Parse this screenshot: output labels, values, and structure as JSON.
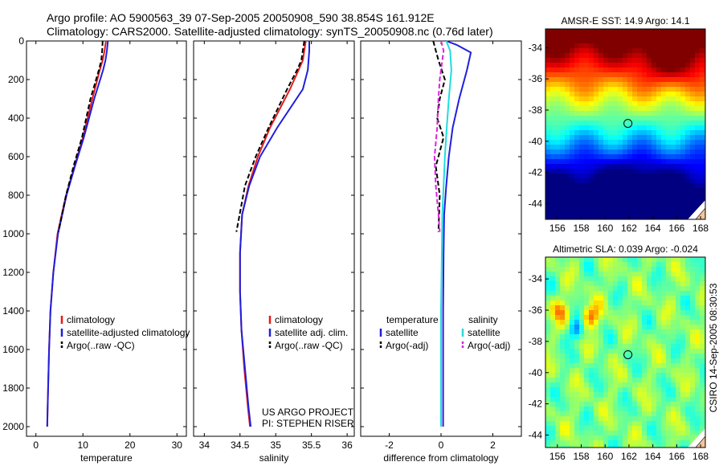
{
  "header": {
    "line1": "Argo profile: AO 5900563_39 07-Sep-2005 20050908_590 38.854S 161.912E",
    "line2": "Climatology: CARS2000. Satellite-adjusted climatology: synTS_20050908.nc (0.76d later)"
  },
  "side_label": "CSIRO 14-Sep-2005 08:30:53",
  "project_label": [
    "US ARGO PROJECT",
    "PI: STEPHEN RISER"
  ],
  "colors": {
    "climatology": "#e41a1c",
    "satellite": "#1f1fdd",
    "argo": "#000000",
    "salinity_satellite": "#22dddd",
    "salinity_argo": "#dd22dd"
  },
  "chart_data": [
    {
      "type": "line",
      "xlabel": "temperature",
      "xticks": [
        0,
        10,
        20,
        30
      ],
      "xlim": [
        -2,
        32
      ],
      "yticks": [
        0,
        200,
        400,
        600,
        800,
        1000,
        1200,
        1400,
        1600,
        1800,
        2000
      ],
      "ylim": [
        2050,
        0
      ],
      "legend": [
        "climatology",
        "satellite-adjusted climatology",
        "Argo(..raw -QC)"
      ],
      "legend_placement": "lower-right",
      "series": [
        {
          "name": "climatology",
          "style": "solid",
          "color": "#e41a1c",
          "x": [
            14.9,
            14.6,
            14.2,
            13.6,
            12.0,
            10.0,
            8.2,
            6.4,
            4.6,
            3.7,
            3.1,
            2.8,
            2.6,
            2.5,
            2.4
          ],
          "y": [
            0,
            50,
            100,
            150,
            300,
            500,
            650,
            800,
            1000,
            1200,
            1400,
            1600,
            1800,
            1900,
            2000
          ]
        },
        {
          "name": "satellite-adjusted climatology",
          "style": "solid",
          "color": "#1f1fdd",
          "x": [
            15.3,
            15.1,
            14.8,
            14.3,
            12.4,
            10.2,
            8.3,
            6.5,
            4.7,
            3.7,
            3.1,
            2.8,
            2.6,
            2.5,
            2.4
          ],
          "y": [
            0,
            50,
            100,
            150,
            300,
            500,
            650,
            800,
            1000,
            1200,
            1400,
            1600,
            1800,
            1900,
            2000
          ]
        },
        {
          "name": "Argo(..raw -QC)",
          "style": "dashed",
          "color": "#000000",
          "x": [
            14.2,
            14.1,
            13.9,
            13.4,
            11.6,
            9.8,
            8.0,
            6.4,
            4.8
          ],
          "y": [
            0,
            50,
            100,
            150,
            300,
            500,
            650,
            800,
            990
          ]
        }
      ]
    },
    {
      "type": "line",
      "xlabel": "salinity",
      "xticks": [
        34,
        34.5,
        35,
        35.5,
        36
      ],
      "xlim": [
        33.85,
        36.1
      ],
      "yticks": [
        0,
        200,
        400,
        600,
        800,
        1000,
        1200,
        1400,
        1600,
        1800,
        2000
      ],
      "ylim": [
        2050,
        0
      ],
      "legend": [
        "climatology",
        "satellite adj. clim.",
        "Argo(..raw -QC)"
      ],
      "legend_placement": "lower-right",
      "series": [
        {
          "name": "climatology",
          "style": "solid",
          "color": "#e41a1c",
          "x": [
            35.42,
            35.4,
            35.38,
            35.32,
            35.2,
            34.92,
            34.75,
            34.62,
            34.53,
            34.5,
            34.5,
            34.52,
            34.56,
            34.61,
            34.64
          ],
          "y": [
            0,
            50,
            100,
            150,
            250,
            450,
            600,
            750,
            900,
            1100,
            1300,
            1500,
            1700,
            1900,
            2000
          ]
        },
        {
          "name": "satellite adj. clim.",
          "style": "solid",
          "color": "#1f1fdd",
          "x": [
            35.47,
            35.47,
            35.46,
            35.45,
            35.38,
            35.02,
            34.78,
            34.63,
            34.53,
            34.5,
            34.5,
            34.52,
            34.57,
            34.62,
            34.65
          ],
          "y": [
            0,
            50,
            100,
            150,
            250,
            450,
            600,
            750,
            900,
            1100,
            1300,
            1500,
            1700,
            1900,
            2000
          ]
        },
        {
          "name": "Argo(..raw -QC)",
          "style": "dashed",
          "color": "#000000",
          "x": [
            35.4,
            35.38,
            35.36,
            35.3,
            35.16,
            34.9,
            34.72,
            34.57,
            34.45
          ],
          "y": [
            0,
            50,
            100,
            150,
            250,
            450,
            600,
            750,
            990
          ]
        }
      ]
    },
    {
      "type": "line",
      "xlabel": "difference from climatology",
      "xticks": [
        -2,
        0,
        2
      ],
      "xlim": [
        -3.1,
        3.1
      ],
      "yticks": [
        0,
        200,
        400,
        600,
        800,
        1000,
        1200,
        1400,
        1600,
        1800,
        2000
      ],
      "ylim": [
        2050,
        0
      ],
      "legend_left": {
        "title": "temperature",
        "items": [
          "satellite",
          "Argo(-adj)"
        ]
      },
      "legend_right": {
        "title": "salinity",
        "items": [
          "satellite",
          "Argo(-adj)"
        ]
      },
      "series": [
        {
          "name": "temperature satellite",
          "style": "solid",
          "color": "#1f1fdd",
          "x": [
            0.2,
            0.6,
            1.15,
            1.0,
            0.7,
            0.45,
            0.3,
            0.2,
            0.12,
            0.1,
            0.08,
            0.08,
            0.08,
            0.08
          ],
          "y": [
            0,
            20,
            60,
            150,
            300,
            450,
            600,
            750,
            900,
            1100,
            1400,
            1700,
            1900,
            2000
          ]
        },
        {
          "name": "temperature Argo(-adj)",
          "style": "dashed",
          "color": "#000000",
          "x": [
            -0.3,
            -0.2,
            -0.1,
            0.15,
            -0.05,
            -0.15,
            0.1,
            -0.2,
            -0.05,
            -0.1
          ],
          "y": [
            0,
            50,
            100,
            200,
            300,
            400,
            500,
            650,
            800,
            990
          ]
        },
        {
          "name": "salinity satellite",
          "style": "solid",
          "color": "#22dddd",
          "x": [
            0.2,
            0.35,
            0.4,
            0.3,
            0.22,
            0.15,
            0.1,
            0.05,
            0.03,
            0.0,
            0.0,
            0.0
          ],
          "y": [
            0,
            50,
            150,
            300,
            450,
            600,
            750,
            900,
            1100,
            1400,
            1700,
            2000
          ]
        },
        {
          "name": "salinity Argo(-adj)",
          "style": "dashed",
          "color": "#dd22dd",
          "x": [
            0.0,
            0.1,
            0.05,
            -0.05,
            -0.1,
            -0.15,
            -0.25,
            -0.2,
            -0.1,
            -0.05
          ],
          "y": [
            0,
            50,
            100,
            200,
            300,
            450,
            600,
            750,
            900,
            990
          ]
        }
      ]
    },
    {
      "type": "heatmap",
      "title": "AMSR-E SST: 14.9 Argo: 14.1",
      "xticks": [
        156,
        158,
        160,
        162,
        164,
        166,
        168
      ],
      "xlim": [
        155,
        168.4
      ],
      "yticks": [
        -34,
        -36,
        -38,
        -40,
        -42,
        -44
      ],
      "ylim": [
        -45,
        -32.8
      ],
      "marker": {
        "lon": 161.912,
        "lat": -38.854
      }
    },
    {
      "type": "heatmap",
      "title": "Altimetric SLA: 0.039 Argo: -0.024",
      "xticks": [
        156,
        158,
        160,
        162,
        164,
        166,
        168
      ],
      "xlim": [
        155,
        168.4
      ],
      "yticks": [
        -34,
        -36,
        -38,
        -40,
        -42,
        -44
      ],
      "ylim": [
        -44.8,
        -32.6
      ],
      "marker": {
        "lon": 161.912,
        "lat": -38.854
      }
    }
  ]
}
